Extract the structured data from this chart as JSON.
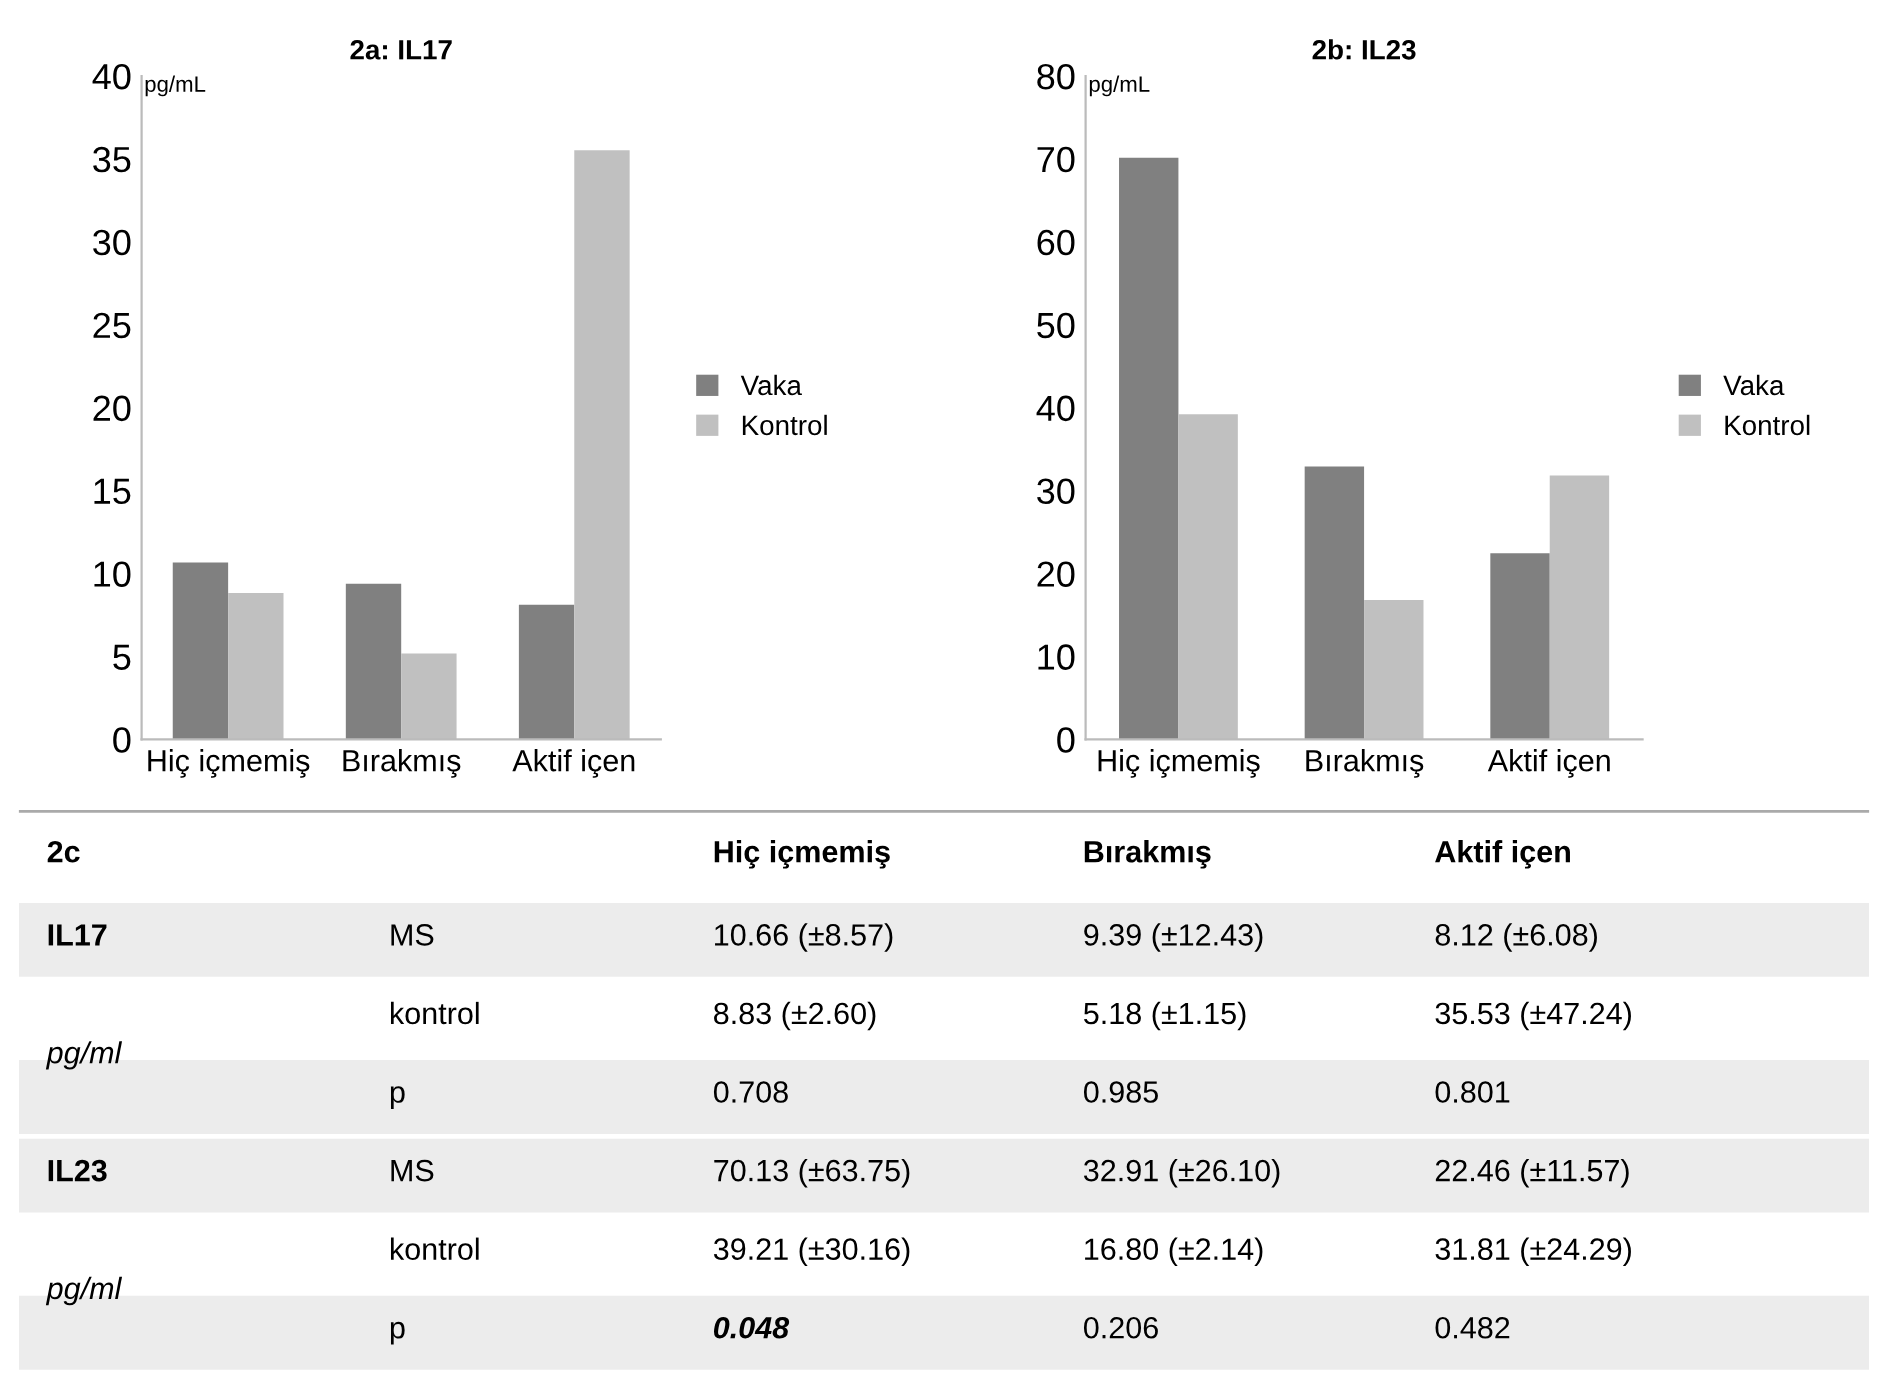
{
  "chart_data": [
    {
      "type": "bar",
      "title": "2a: IL17",
      "ylabel": "pg/mL",
      "categories": [
        "Hiç içmemiş",
        "Bırakmış",
        "Aktif içen"
      ],
      "series": [
        {
          "name": "Vaka",
          "color": "#808080",
          "values": [
            10.66,
            9.39,
            8.12
          ]
        },
        {
          "name": "Kontrol",
          "color": "#c0c0c0",
          "values": [
            8.83,
            5.18,
            35.53
          ]
        }
      ],
      "ylim": [
        0,
        40
      ],
      "yticks": [
        0,
        5,
        10,
        15,
        20,
        25,
        30,
        35,
        40
      ],
      "legend": "right"
    },
    {
      "type": "bar",
      "title": "2b: IL23",
      "ylabel": "pg/mL",
      "categories": [
        "Hiç içmemiş",
        "Bırakmış",
        "Aktif içen"
      ],
      "series": [
        {
          "name": "Vaka",
          "color": "#808080",
          "values": [
            70.13,
            32.91,
            22.46
          ]
        },
        {
          "name": "Kontrol",
          "color": "#c0c0c0",
          "values": [
            39.21,
            16.8,
            31.81
          ]
        }
      ],
      "ylim": [
        0,
        80
      ],
      "yticks": [
        0,
        10,
        20,
        30,
        40,
        50,
        60,
        70,
        80
      ],
      "legend": "right"
    },
    {
      "type": "other",
      "title": "2c",
      "categories": [
        "Hiç içmemiş",
        "Bırakmış",
        "Aktif içen"
      ],
      "annotations": [
        "IL17",
        "pg/ml",
        "MS",
        "10.66 (±8.57)",
        "9.39 (±12.43)",
        "8.12 (±6.08)",
        "kontrol",
        "8.83 (±2.60)",
        "5.18 (±1.15)",
        "35.53 (±47.24)",
        "p",
        "0.708",
        "0.985",
        "0.801",
        "IL23",
        "pg/ml",
        "MS",
        "70.13 (±63.75)",
        "32.91 (±26.10)",
        "22.46 (±11.57)",
        "kontrol",
        "39.21 (±30.16)",
        "16.80 (±2.14)",
        "31.81 (±24.29)",
        "p",
        "0.048",
        "0.206",
        "0.482"
      ]
    }
  ]
}
